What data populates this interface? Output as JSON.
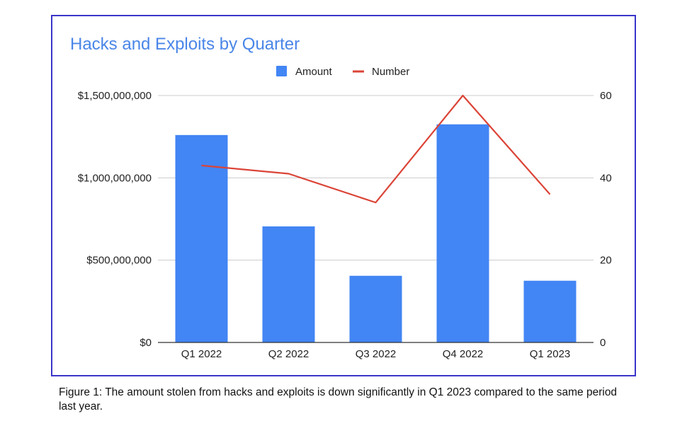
{
  "chart_data": {
    "type": "bar",
    "title": "Hacks and Exploits by Quarter",
    "categories": [
      "Q1 2022",
      "Q2 2022",
      "Q3 2022",
      "Q4 2022",
      "Q1 2023"
    ],
    "series": [
      {
        "name": "Amount",
        "kind": "bar",
        "axis": "left",
        "color": "#4285f4",
        "values": [
          1260000000,
          705000000,
          405000000,
          1325000000,
          375000000
        ]
      },
      {
        "name": "Number",
        "kind": "line",
        "axis": "right",
        "color": "#db4437",
        "values": [
          43,
          41,
          34,
          60,
          36
        ]
      }
    ],
    "left_axis": {
      "ylim": [
        0,
        1500000000
      ],
      "ticks": [
        0,
        500000000,
        1000000000,
        1500000000
      ],
      "tick_labels": [
        "$0",
        "$500,000,000",
        "$1,000,000,000",
        "$1,500,000,000"
      ]
    },
    "right_axis": {
      "ylim": [
        0,
        60
      ],
      "ticks": [
        0,
        20,
        40,
        60
      ],
      "tick_labels": [
        "0",
        "20",
        "40",
        "60"
      ]
    },
    "grid": true,
    "legend_position": "top-center",
    "title_color": "#4a86e8",
    "frame_color": "#3a35c9"
  },
  "caption": "Figure 1: The amount stolen from hacks and exploits is down significantly in Q1 2023 compared to the same period last year."
}
